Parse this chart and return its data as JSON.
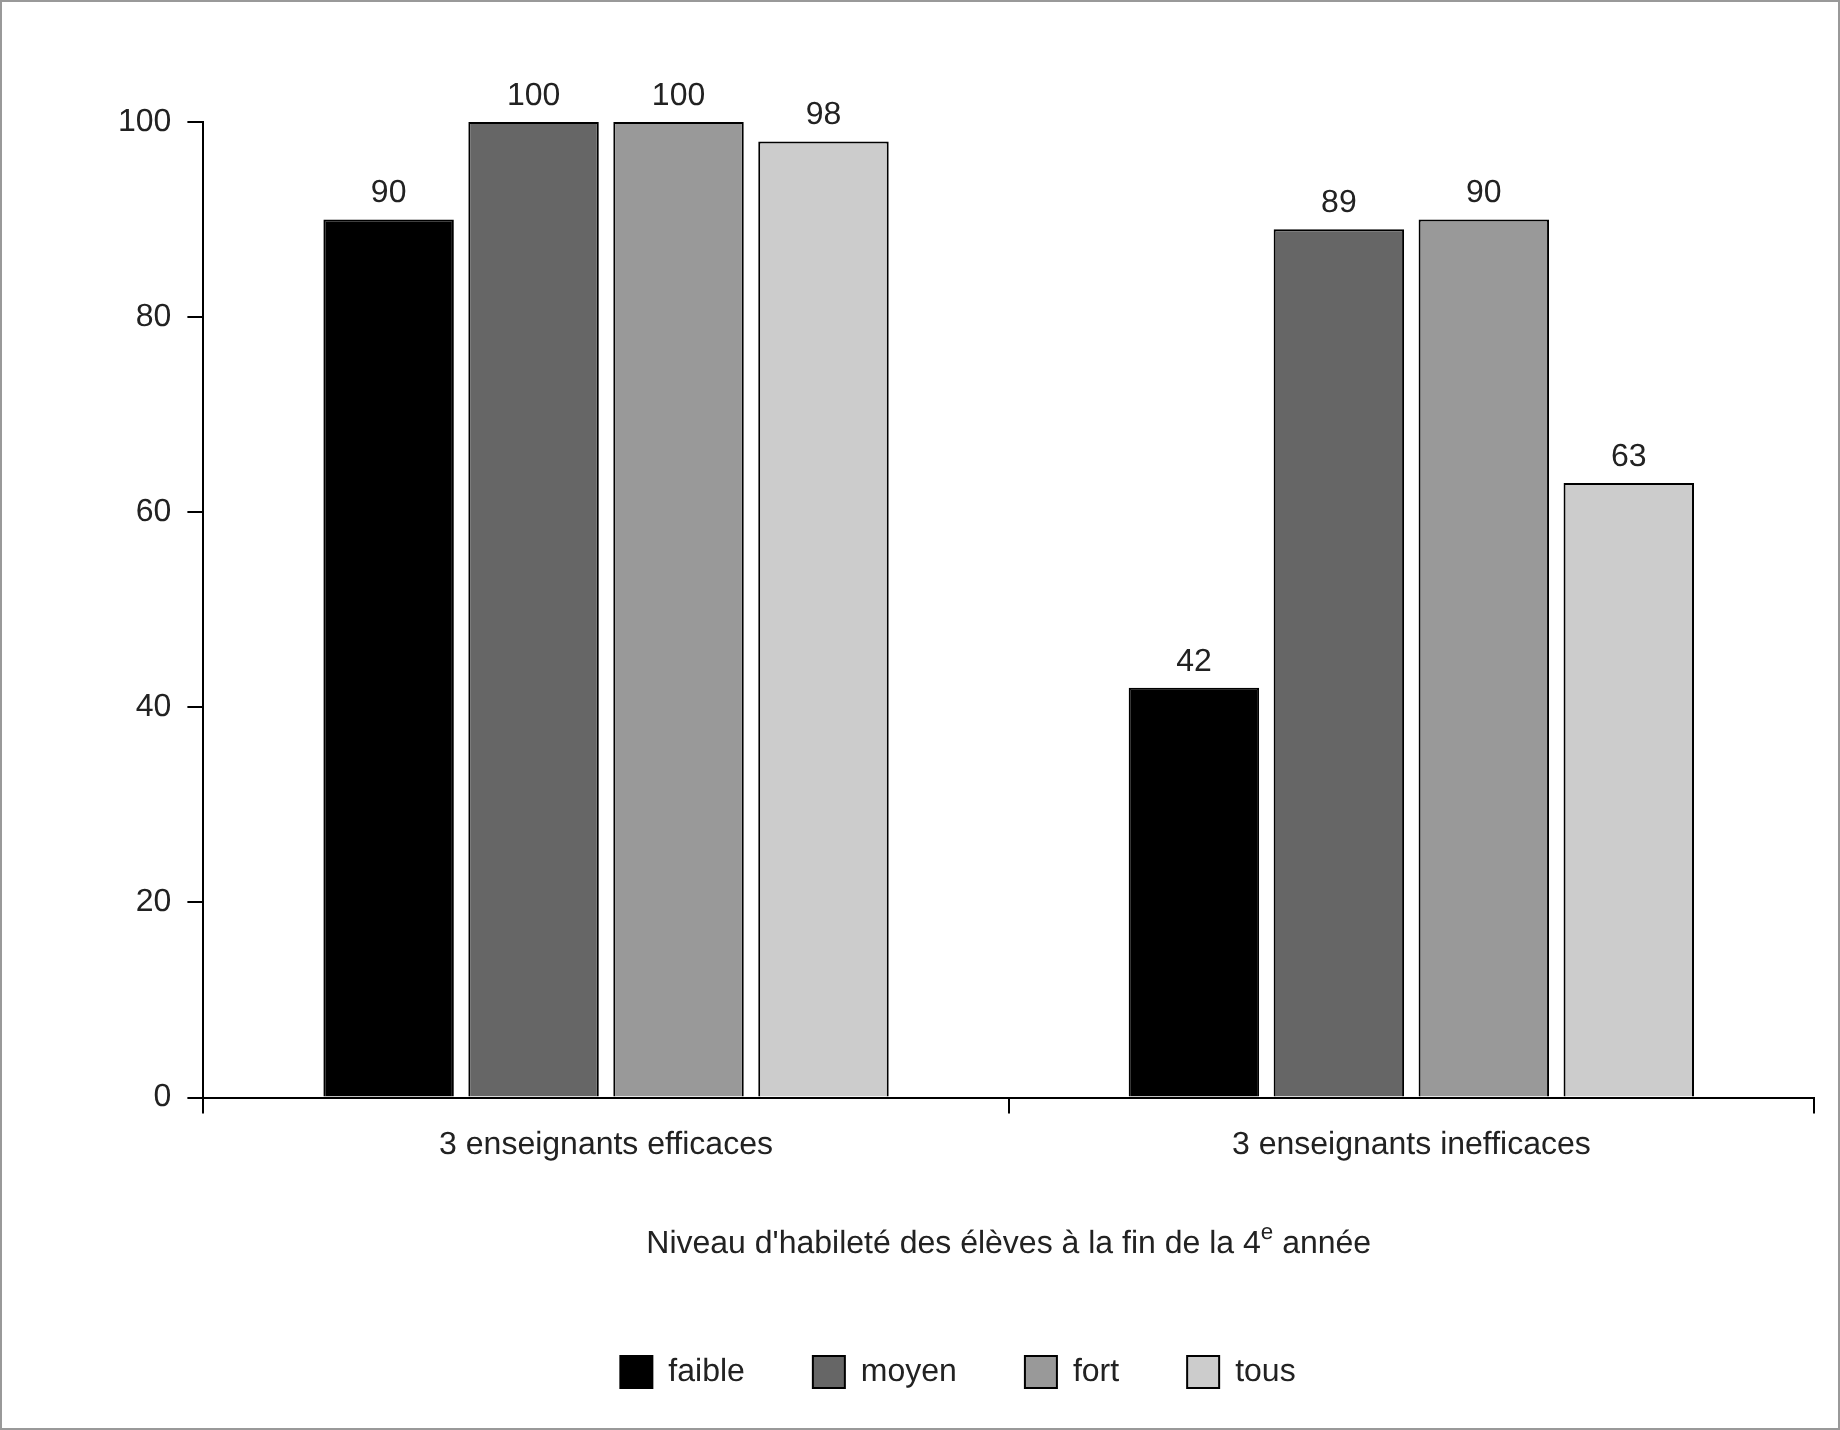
{
  "chart_data": {
    "type": "bar",
    "xlabel": "Niveau d'habileté des élèves à la fin de la 4$^{e}$ année",
    "categories": [
      "3 enseignants efficaces",
      "3 enseignants inefficaces"
    ],
    "series": [
      {
        "name": "faible",
        "color": "#000000",
        "values": [
          90,
          42
        ]
      },
      {
        "name": "moyen",
        "color": "#666666",
        "values": [
          100,
          89
        ]
      },
      {
        "name": "fort",
        "color": "#999999",
        "values": [
          100,
          90
        ]
      },
      {
        "name": "tous",
        "color": "#cccccc",
        "values": [
          98,
          63
        ]
      }
    ],
    "ylim": [
      0,
      100
    ],
    "yticks": [
      0,
      20,
      40,
      60,
      80,
      100
    ],
    "grid": false,
    "legend": "bottom",
    "data_labels": true
  }
}
